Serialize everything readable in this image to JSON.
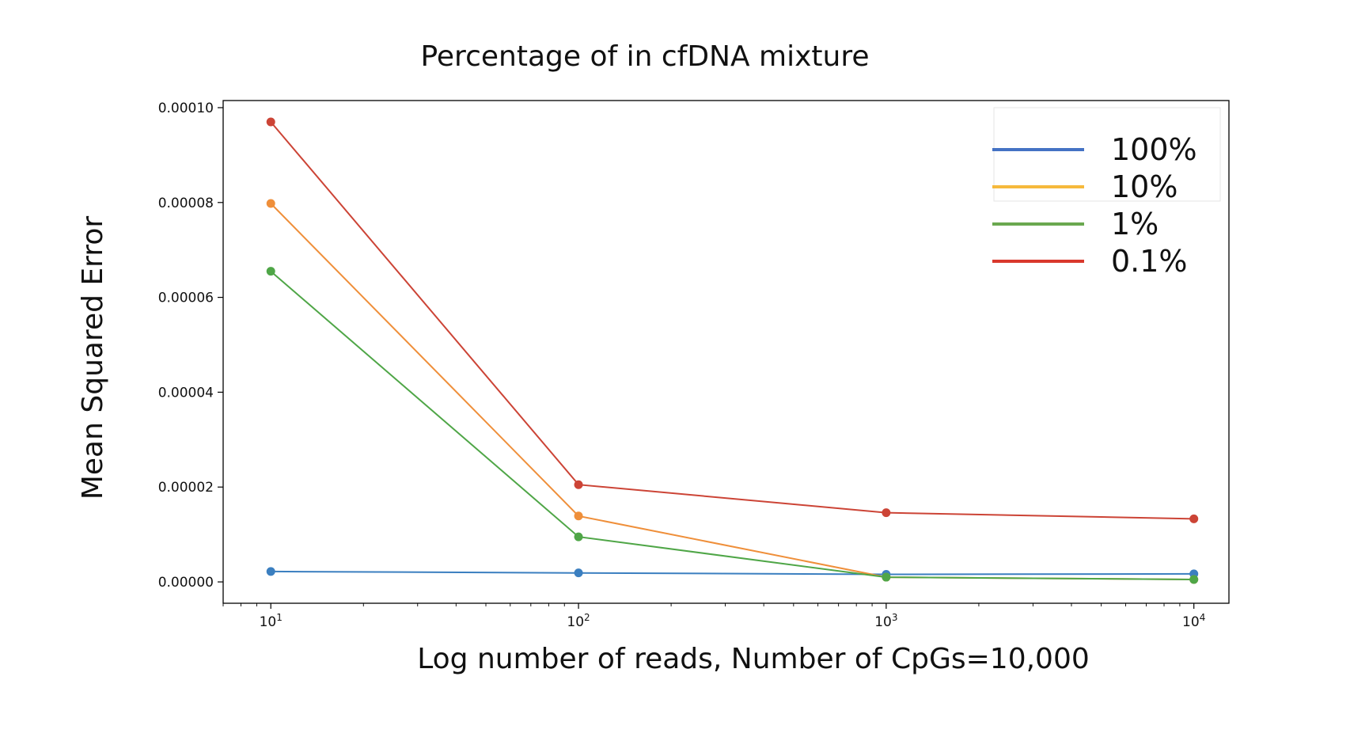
{
  "chart_data": {
    "type": "line",
    "title": "Percentage of in cfDNA mixture",
    "xlabel": "Log number of reads, Number of CpGs=10,000",
    "ylabel": "Mean Squared Error",
    "x_scale": "log",
    "x": [
      10,
      100,
      1000,
      10000
    ],
    "x_tick_labels": [
      {
        "base": "10",
        "exp": "1"
      },
      {
        "base": "10",
        "exp": "2"
      },
      {
        "base": "10",
        "exp": "3"
      },
      {
        "base": "10",
        "exp": "4"
      }
    ],
    "y_ticks": [
      0,
      2e-05,
      4e-05,
      6e-05,
      8e-05,
      0.0001
    ],
    "y_tick_labels": [
      "0.00000",
      "0.00002",
      "0.00004",
      "0.00006",
      "0.00008",
      "0.00010"
    ],
    "xlim": [
      7.0,
      13000
    ],
    "ylim": [
      -4.5e-06,
      0.0001015
    ],
    "grid": false,
    "legend_position": "top-right",
    "series": [
      {
        "name": "100%",
        "color": "#3b7fc0",
        "legend_color": "#4472c4",
        "values": [
          2.2e-06,
          1.9e-06,
          1.6e-06,
          1.7e-06
        ]
      },
      {
        "name": "10%",
        "color": "#ef8f3a",
        "legend_color": "#f6b93b",
        "values": [
          7.98e-05,
          1.39e-05,
          1e-06,
          5e-07
        ]
      },
      {
        "name": "1%",
        "color": "#4fa647",
        "legend_color": "#6aa84f",
        "values": [
          6.55e-05,
          9.5e-06,
          1e-06,
          5e-07
        ]
      },
      {
        "name": "0.1%",
        "color": "#cc4436",
        "legend_color": "#d9382c",
        "values": [
          9.7e-05,
          2.05e-05,
          1.46e-05,
          1.33e-05
        ]
      }
    ]
  }
}
